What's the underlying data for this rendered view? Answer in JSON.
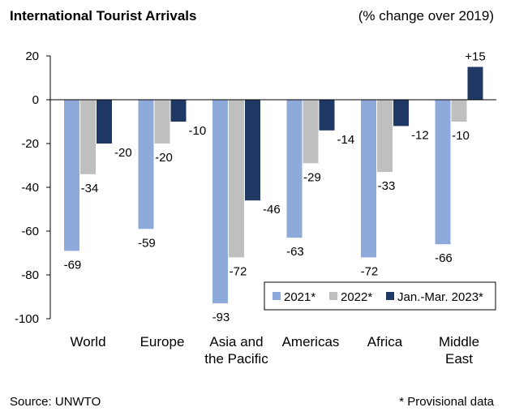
{
  "header": {
    "title": "International Tourist Arrivals",
    "subtitle": "(% change over 2019)"
  },
  "footer": {
    "source": "Source: UNWTO",
    "note": "* Provisional data"
  },
  "colors": {
    "s2021": "#8eaadb",
    "s2022": "#bfbfbf",
    "s2023": "#1f3864"
  },
  "chart_data": {
    "type": "bar",
    "title": "International Tourist Arrivals",
    "subtitle": "(% change over 2019)",
    "xlabel": "",
    "ylabel": "",
    "ylim": [
      -100,
      20
    ],
    "yticks": [
      20,
      0,
      -20,
      -40,
      -60,
      -80,
      -100
    ],
    "ytick_labels": [
      "20",
      "0",
      "-20",
      "-40",
      "-60",
      "-80",
      "-100"
    ],
    "grid": false,
    "legend_position": "bottom-right",
    "categories": [
      [
        "World"
      ],
      [
        "Europe"
      ],
      [
        "Asia and",
        "the Pacific"
      ],
      [
        "Americas"
      ],
      [
        "Africa"
      ],
      [
        "Middle",
        "East"
      ]
    ],
    "series": [
      {
        "name": "2021*",
        "values": [
          -69,
          -59,
          -93,
          -63,
          -72,
          -66
        ],
        "labels": [
          "-69",
          "-59",
          "-93",
          "-63",
          "-72",
          "-66"
        ]
      },
      {
        "name": "2022*",
        "values": [
          -34,
          -20,
          -72,
          -29,
          -33,
          -10
        ],
        "labels": [
          "-34",
          "-20",
          "-72",
          "-29",
          "-33",
          "-10"
        ]
      },
      {
        "name": "Jan.-Mar. 2023*",
        "values": [
          -20,
          -10,
          -46,
          -14,
          -12,
          15
        ],
        "labels": [
          "-20",
          "-10",
          "-46",
          "-14",
          "-12",
          "+15"
        ]
      }
    ]
  }
}
